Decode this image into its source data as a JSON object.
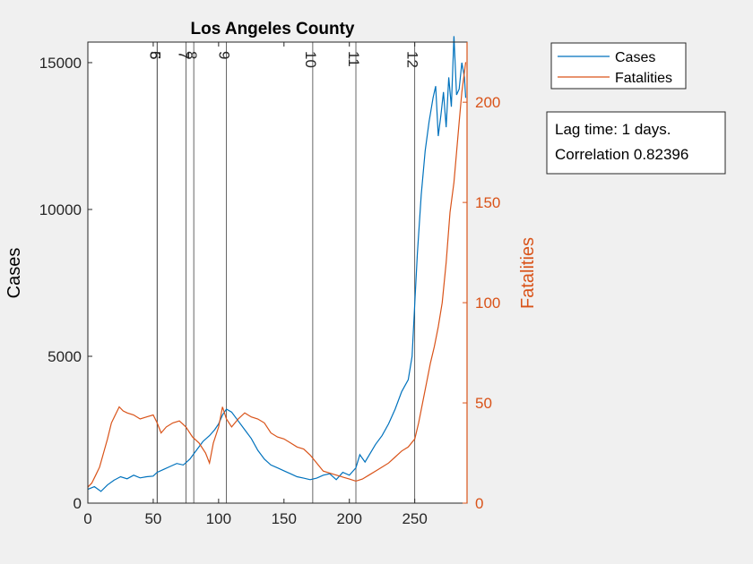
{
  "chart_data": {
    "type": "line",
    "title": "Los Angeles County",
    "xlabel": "",
    "ylabel_left": "Cases",
    "ylabel_right": "Fatalities",
    "xlim": [
      0,
      290
    ],
    "ylim_left": [
      0,
      15700
    ],
    "ylim_right": [
      0,
      230
    ],
    "xticks": [
      0,
      50,
      100,
      150,
      200,
      250
    ],
    "yticks_left": [
      0,
      5000,
      10000,
      15000
    ],
    "yticks_right": [
      0,
      50,
      100,
      150,
      200
    ],
    "colors": {
      "cases": "#0072bd",
      "fatalities": "#d95319",
      "axis_right": "#d95319",
      "lines": "#404040"
    },
    "grid": false,
    "legend_placement": "outside-top-right",
    "vertical_markers": [
      {
        "label": "5",
        "x": 53
      },
      {
        "label": "6",
        "x": 53
      },
      {
        "label": "7",
        "x": 75
      },
      {
        "label": "8",
        "x": 81
      },
      {
        "label": "9",
        "x": 106
      },
      {
        "label": "10",
        "x": 172
      },
      {
        "label": "11",
        "x": 205
      },
      {
        "label": "12",
        "x": 250
      }
    ],
    "series": [
      {
        "name": "Cases",
        "axis": "left",
        "x": [
          0,
          5,
          10,
          15,
          20,
          25,
          30,
          35,
          40,
          45,
          50,
          53,
          58,
          63,
          68,
          73,
          78,
          83,
          88,
          93,
          97,
          100,
          103,
          106,
          110,
          115,
          120,
          125,
          130,
          135,
          140,
          145,
          150,
          155,
          160,
          165,
          170,
          175,
          180,
          185,
          190,
          195,
          200,
          205,
          208,
          212,
          216,
          220,
          225,
          230,
          235,
          240,
          245,
          248,
          250,
          252,
          255,
          258,
          261,
          264,
          266,
          268,
          270,
          272,
          274,
          276,
          278,
          280,
          282,
          284,
          286,
          288,
          289
        ],
        "values": [
          470,
          560,
          400,
          620,
          780,
          900,
          830,
          950,
          860,
          900,
          920,
          1050,
          1150,
          1250,
          1350,
          1300,
          1500,
          1800,
          2100,
          2300,
          2500,
          2700,
          3000,
          3200,
          3100,
          2800,
          2500,
          2200,
          1800,
          1500,
          1300,
          1200,
          1100,
          1000,
          900,
          850,
          800,
          850,
          950,
          1000,
          800,
          1050,
          950,
          1200,
          1650,
          1400,
          1700,
          2000,
          2300,
          2700,
          3200,
          3800,
          4200,
          5000,
          6800,
          8500,
          10500,
          12000,
          13000,
          13800,
          14200,
          12500,
          13200,
          14000,
          12800,
          14500,
          13500,
          15900,
          13900,
          14100,
          15000,
          14500,
          13800
        ]
      },
      {
        "name": "Fatalities",
        "axis": "right",
        "x": [
          0,
          3,
          6,
          9,
          12,
          15,
          18,
          21,
          24,
          27,
          30,
          35,
          40,
          45,
          50,
          53,
          56,
          60,
          65,
          70,
          75,
          80,
          85,
          90,
          93,
          96,
          100,
          103,
          106,
          110,
          115,
          120,
          125,
          130,
          135,
          140,
          145,
          150,
          155,
          160,
          165,
          170,
          175,
          180,
          185,
          190,
          195,
          200,
          205,
          210,
          215,
          220,
          225,
          230,
          235,
          240,
          245,
          250,
          253,
          256,
          259,
          262,
          265,
          268,
          271,
          274,
          277,
          280,
          282,
          284,
          286,
          288,
          289
        ],
        "values": [
          8,
          10,
          14,
          18,
          25,
          32,
          40,
          44,
          48,
          46,
          45,
          44,
          42,
          43,
          44,
          40,
          35,
          38,
          40,
          41,
          38,
          33,
          30,
          25,
          20,
          30,
          38,
          48,
          42,
          38,
          42,
          45,
          43,
          42,
          40,
          35,
          33,
          32,
          30,
          28,
          27,
          24,
          20,
          16,
          15,
          14,
          13,
          12,
          11,
          12,
          14,
          16,
          18,
          20,
          23,
          26,
          28,
          32,
          40,
          50,
          60,
          70,
          78,
          88,
          100,
          120,
          145,
          160,
          175,
          190,
          205,
          215,
          220
        ]
      }
    ]
  },
  "annotation": {
    "line1": "Lag time: 1 days.",
    "line2": "Correlation 0.82396"
  }
}
